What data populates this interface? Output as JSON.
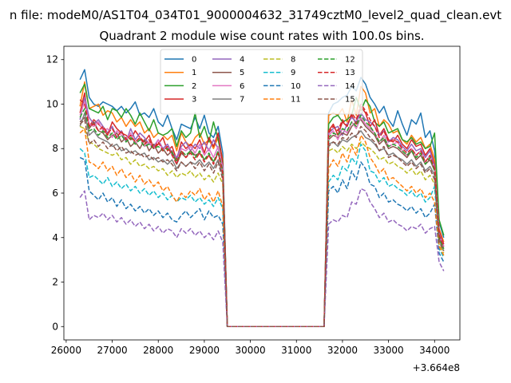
{
  "chart_data": {
    "type": "line",
    "suptitle": "n file: modeM0/AS1T04_034T01_9000004632_31749cztM0_level2_quad_clean.evt",
    "title": "Quadrant 2 module wise count rates with 100.0s bins.",
    "xlabel": "",
    "ylabel": "",
    "x_offset_label": "+3.664e8",
    "xlim": [
      25950,
      34550
    ],
    "ylim": [
      -0.6,
      12.6
    ],
    "x_ticks": [
      26000,
      27000,
      28000,
      29000,
      30000,
      31000,
      32000,
      33000,
      34000
    ],
    "y_ticks": [
      0,
      2,
      4,
      6,
      8,
      10,
      12
    ],
    "grid": false,
    "legend": {
      "placement": "top-center",
      "columns": 4
    },
    "x": [
      26300,
      26400,
      26500,
      26600,
      26700,
      26800,
      26900,
      27000,
      27100,
      27200,
      27300,
      27400,
      27500,
      27600,
      27700,
      27800,
      27900,
      28000,
      28100,
      28200,
      28300,
      28400,
      28500,
      28600,
      28700,
      28800,
      28900,
      29000,
      29100,
      29200,
      29300,
      29400,
      29500,
      29600,
      29700,
      31600,
      31700,
      31800,
      31900,
      32000,
      32100,
      32200,
      32300,
      32400,
      32500,
      32600,
      32700,
      32800,
      32900,
      33000,
      33100,
      33200,
      33300,
      33400,
      33500,
      33600,
      33700,
      33800,
      33900,
      34000,
      34100,
      34200
    ],
    "series": [
      {
        "name": "0",
        "color": "#1f77b4",
        "dash": "solid",
        "values": [
          11.1,
          11.55,
          10.3,
          10.0,
          9.9,
          10.1,
          10.0,
          9.9,
          9.7,
          9.9,
          9.6,
          9.8,
          10.1,
          9.5,
          9.6,
          9.4,
          9.8,
          9.2,
          9.0,
          9.5,
          8.9,
          8.4,
          9.1,
          9.0,
          8.9,
          9.4,
          8.9,
          9.5,
          8.7,
          8.5,
          9.0,
          7.8,
          0.0,
          0.0,
          0.0,
          0.0,
          9.6,
          10.0,
          10.1,
          10.3,
          10.4,
          10.8,
          10.6,
          11.2,
          10.9,
          10.3,
          10.0,
          9.6,
          9.9,
          9.3,
          9.0,
          9.7,
          9.1,
          8.6,
          9.3,
          9.1,
          9.6,
          8.5,
          8.8,
          7.9,
          4.7,
          4.0
        ]
      },
      {
        "name": "1",
        "color": "#ff7f0e",
        "dash": "solid",
        "values": [
          9.9,
          11.0,
          9.8,
          9.9,
          10.0,
          9.5,
          9.7,
          9.6,
          9.2,
          9.4,
          9.0,
          9.3,
          9.0,
          9.2,
          8.7,
          8.9,
          8.5,
          8.7,
          8.6,
          8.4,
          8.6,
          7.9,
          8.7,
          8.3,
          8.1,
          8.5,
          8.7,
          8.2,
          8.4,
          8.0,
          8.5,
          7.5,
          0.0,
          0.0,
          0.0,
          0.0,
          9.5,
          9.6,
          9.5,
          9.8,
          9.2,
          10.2,
          9.5,
          10.8,
          10.5,
          9.6,
          9.8,
          9.0,
          9.3,
          9.1,
          8.7,
          8.8,
          8.4,
          8.2,
          8.6,
          8.3,
          8.5,
          8.0,
          8.2,
          7.5,
          4.4,
          3.8
        ]
      },
      {
        "name": "2",
        "color": "#2ca02c",
        "dash": "solid",
        "values": [
          10.5,
          10.9,
          9.8,
          9.7,
          9.6,
          9.9,
          9.3,
          9.8,
          9.7,
          9.4,
          9.8,
          9.5,
          9.1,
          9.6,
          9.2,
          8.8,
          9.3,
          8.7,
          8.6,
          8.7,
          8.9,
          8.1,
          8.8,
          8.5,
          8.7,
          9.6,
          8.5,
          9.0,
          8.3,
          9.2,
          8.4,
          7.4,
          0.0,
          0.0,
          0.0,
          0.0,
          9.1,
          9.4,
          9.5,
          9.2,
          9.3,
          9.5,
          10.3,
          9.7,
          10.2,
          9.9,
          9.2,
          9.0,
          9.2,
          8.7,
          8.8,
          8.9,
          8.4,
          8.3,
          8.5,
          8.2,
          8.3,
          8.0,
          8.1,
          8.7,
          4.8,
          4.1
        ]
      },
      {
        "name": "3",
        "color": "#d62728",
        "dash": "solid",
        "values": [
          9.6,
          10.5,
          9.0,
          9.3,
          9.1,
          8.9,
          8.6,
          9.2,
          8.9,
          8.7,
          8.6,
          8.4,
          8.8,
          8.5,
          8.3,
          8.6,
          8.0,
          8.2,
          8.5,
          7.9,
          8.1,
          7.5,
          8.3,
          8.0,
          8.2,
          8.0,
          8.4,
          7.8,
          8.5,
          8.1,
          8.7,
          7.3,
          0.0,
          0.0,
          0.0,
          0.0,
          8.8,
          9.1,
          8.6,
          9.2,
          9.0,
          9.5,
          9.1,
          9.9,
          9.6,
          9.0,
          9.3,
          8.6,
          8.9,
          8.4,
          8.3,
          8.6,
          8.2,
          8.0,
          8.4,
          8.1,
          8.2,
          7.7,
          8.0,
          7.3,
          4.3,
          3.7
        ]
      },
      {
        "name": "4",
        "color": "#9467bd",
        "dash": "solid",
        "values": [
          9.3,
          10.3,
          9.4,
          9.1,
          9.3,
          9.0,
          8.7,
          9.0,
          8.5,
          8.8,
          8.3,
          8.9,
          8.4,
          8.7,
          8.5,
          8.2,
          8.1,
          8.4,
          8.0,
          8.2,
          7.8,
          7.6,
          8.1,
          8.3,
          7.9,
          8.2,
          8.0,
          8.3,
          7.9,
          8.4,
          8.0,
          7.2,
          0.0,
          0.0,
          0.0,
          0.0,
          8.7,
          8.9,
          9.0,
          8.6,
          9.1,
          9.4,
          9.2,
          9.6,
          9.3,
          9.2,
          9.0,
          8.6,
          8.8,
          8.3,
          8.5,
          8.4,
          8.1,
          7.9,
          8.2,
          7.9,
          8.0,
          7.6,
          7.9,
          7.2,
          4.2,
          3.6
        ]
      },
      {
        "name": "5",
        "color": "#8c564b",
        "dash": "solid",
        "values": [
          9.2,
          9.4,
          8.9,
          9.2,
          8.8,
          8.7,
          8.4,
          8.6,
          8.7,
          8.3,
          8.5,
          8.1,
          8.3,
          8.0,
          8.4,
          7.9,
          8.2,
          7.8,
          8.0,
          7.7,
          7.9,
          7.3,
          7.8,
          7.6,
          7.9,
          7.7,
          7.8,
          7.5,
          7.7,
          7.4,
          7.8,
          7.0,
          0.0,
          0.0,
          0.0,
          0.0,
          8.4,
          8.6,
          8.5,
          8.7,
          8.6,
          9.0,
          9.2,
          9.3,
          9.0,
          8.8,
          8.6,
          8.2,
          8.4,
          8.0,
          8.1,
          8.0,
          7.8,
          7.6,
          7.9,
          7.5,
          7.7,
          7.3,
          7.5,
          7.0,
          4.0,
          3.5
        ]
      },
      {
        "name": "6",
        "color": "#e377c2",
        "dash": "solid",
        "values": [
          9.5,
          10.1,
          9.1,
          9.0,
          9.2,
          8.8,
          8.9,
          8.5,
          8.8,
          8.6,
          8.4,
          8.7,
          8.2,
          8.5,
          8.1,
          8.3,
          8.0,
          8.4,
          7.9,
          8.1,
          7.7,
          7.4,
          8.0,
          7.9,
          8.1,
          7.8,
          8.2,
          7.7,
          8.0,
          7.6,
          8.1,
          7.1,
          0.0,
          0.0,
          0.0,
          0.0,
          8.6,
          8.8,
          8.4,
          8.9,
          8.7,
          9.2,
          8.9,
          9.4,
          9.1,
          8.9,
          8.7,
          8.3,
          8.6,
          8.1,
          8.2,
          8.3,
          7.9,
          7.7,
          8.0,
          7.7,
          7.9,
          7.4,
          7.7,
          7.1,
          4.1,
          3.6
        ]
      },
      {
        "name": "7",
        "color": "#7f7f7f",
        "dash": "solid",
        "values": [
          9.0,
          9.6,
          8.6,
          8.8,
          8.5,
          8.4,
          8.3,
          8.1,
          8.2,
          7.9,
          8.0,
          7.8,
          7.9,
          7.7,
          7.8,
          7.5,
          7.6,
          7.4,
          7.5,
          7.3,
          7.5,
          7.1,
          7.4,
          7.2,
          7.4,
          7.3,
          7.5,
          7.2,
          7.4,
          7.1,
          7.5,
          6.8,
          0.0,
          0.0,
          0.0,
          0.0,
          8.2,
          8.3,
          8.1,
          8.4,
          8.3,
          8.5,
          8.6,
          8.8,
          8.5,
          8.4,
          8.2,
          7.9,
          8.0,
          7.7,
          7.8,
          7.6,
          7.5,
          7.3,
          7.5,
          7.2,
          7.4,
          7.0,
          7.2,
          6.8,
          3.9,
          3.4
        ]
      },
      {
        "name": "8",
        "color": "#bcbd22",
        "dash": "dashed",
        "values": [
          9.0,
          8.9,
          8.3,
          8.2,
          8.0,
          7.9,
          7.8,
          7.7,
          7.8,
          7.5,
          7.6,
          7.3,
          7.5,
          7.2,
          7.3,
          7.1,
          7.2,
          7.0,
          7.1,
          6.8,
          7.0,
          6.7,
          6.9,
          6.8,
          7.0,
          6.7,
          6.9,
          6.6,
          6.8,
          6.5,
          6.9,
          6.4,
          0.0,
          0.0,
          0.0,
          0.0,
          7.9,
          8.0,
          7.8,
          8.1,
          7.9,
          8.2,
          8.0,
          8.3,
          8.1,
          8.0,
          7.8,
          7.5,
          7.6,
          7.3,
          7.4,
          7.2,
          7.1,
          6.9,
          7.1,
          6.8,
          7.0,
          6.6,
          6.8,
          6.4,
          3.7,
          3.3
        ]
      },
      {
        "name": "9",
        "color": "#17becf",
        "dash": "dashed",
        "values": [
          8.0,
          7.8,
          6.7,
          6.8,
          6.6,
          6.4,
          6.7,
          6.3,
          6.5,
          6.2,
          6.4,
          6.1,
          6.3,
          6.0,
          6.2,
          5.9,
          6.1,
          5.8,
          6.0,
          5.7,
          5.9,
          5.6,
          5.8,
          5.7,
          5.9,
          5.6,
          5.8,
          5.5,
          5.7,
          5.4,
          5.8,
          5.3,
          0.0,
          0.0,
          0.0,
          0.0,
          6.5,
          6.8,
          6.6,
          7.2,
          7.0,
          7.6,
          7.3,
          8.2,
          7.9,
          7.0,
          6.9,
          6.5,
          6.7,
          6.3,
          6.4,
          6.2,
          6.1,
          5.9,
          6.1,
          5.8,
          6.0,
          5.6,
          5.8,
          6.3,
          3.5,
          3.1
        ]
      },
      {
        "name": "10",
        "color": "#1f77b4",
        "dash": "dashed",
        "values": [
          7.6,
          7.5,
          6.1,
          5.9,
          5.7,
          6.0,
          5.6,
          5.8,
          5.4,
          5.7,
          5.3,
          5.5,
          5.2,
          5.4,
          5.1,
          5.3,
          5.0,
          5.2,
          4.9,
          5.1,
          4.8,
          4.7,
          5.0,
          5.2,
          4.9,
          5.1,
          5.3,
          4.8,
          5.2,
          4.9,
          5.0,
          4.6,
          0.0,
          0.0,
          0.0,
          0.0,
          6.1,
          6.3,
          6.0,
          6.6,
          6.2,
          7.0,
          6.6,
          7.4,
          7.1,
          6.4,
          6.3,
          5.8,
          6.0,
          5.6,
          5.7,
          5.5,
          5.4,
          5.2,
          5.4,
          5.1,
          5.3,
          4.9,
          5.1,
          5.5,
          3.3,
          2.9
        ]
      },
      {
        "name": "11",
        "color": "#ff7f0e",
        "dash": "dashed",
        "values": [
          8.7,
          8.9,
          7.4,
          7.3,
          7.1,
          7.4,
          7.0,
          7.2,
          6.8,
          7.1,
          6.7,
          6.9,
          6.5,
          6.8,
          6.4,
          6.6,
          6.3,
          6.5,
          6.1,
          6.3,
          5.9,
          5.6,
          6.0,
          5.8,
          6.1,
          5.9,
          6.2,
          5.7,
          6.0,
          5.6,
          6.1,
          5.4,
          0.0,
          0.0,
          0.0,
          0.0,
          7.1,
          7.5,
          7.2,
          7.8,
          7.4,
          8.1,
          7.7,
          8.6,
          8.3,
          7.6,
          7.3,
          6.9,
          7.1,
          6.6,
          6.7,
          6.5,
          6.3,
          6.1,
          6.3,
          6.0,
          6.2,
          5.8,
          6.0,
          5.6,
          3.6,
          3.2
        ]
      },
      {
        "name": "12",
        "color": "#2ca02c",
        "dash": "dashed",
        "values": [
          9.4,
          9.8,
          8.8,
          8.9,
          8.6,
          8.8,
          8.5,
          8.7,
          8.4,
          8.6,
          8.3,
          8.5,
          8.2,
          8.4,
          8.1,
          8.2,
          8.0,
          8.1,
          7.9,
          8.0,
          7.8,
          7.4,
          7.9,
          7.7,
          7.9,
          7.6,
          7.9,
          7.5,
          7.8,
          7.4,
          7.9,
          7.0,
          0.0,
          0.0,
          0.0,
          0.0,
          8.5,
          8.7,
          8.6,
          8.9,
          8.8,
          9.2,
          9.0,
          9.5,
          9.2,
          9.0,
          8.7,
          8.3,
          8.5,
          8.1,
          8.2,
          8.1,
          7.9,
          7.7,
          7.9,
          7.6,
          7.8,
          7.3,
          7.6,
          7.0,
          4.0,
          3.5
        ]
      },
      {
        "name": "13",
        "color": "#d62728",
        "dash": "dashed",
        "values": [
          10.2,
          10.0,
          9.0,
          9.1,
          8.8,
          9.0,
          8.7,
          8.9,
          8.5,
          8.8,
          8.4,
          8.6,
          8.3,
          8.5,
          8.2,
          8.4,
          8.0,
          8.3,
          7.9,
          8.1,
          7.7,
          7.3,
          7.9,
          7.6,
          7.8,
          7.5,
          7.8,
          7.4,
          7.7,
          7.3,
          7.8,
          6.9,
          0.0,
          0.0,
          0.0,
          0.0,
          8.7,
          9.0,
          8.8,
          9.3,
          9.0,
          9.6,
          9.3,
          10.0,
          9.7,
          9.3,
          9.0,
          8.5,
          8.8,
          8.3,
          8.4,
          8.3,
          8.0,
          7.8,
          8.0,
          7.7,
          7.9,
          7.4,
          7.7,
          7.1,
          4.1,
          3.6
        ]
      },
      {
        "name": "14",
        "color": "#9467bd",
        "dash": "dashed",
        "values": [
          5.8,
          6.1,
          4.8,
          5.0,
          4.9,
          5.1,
          4.8,
          5.0,
          4.7,
          4.9,
          4.6,
          4.8,
          4.5,
          4.7,
          4.4,
          4.6,
          4.3,
          4.5,
          4.2,
          4.4,
          4.3,
          4.0,
          4.4,
          4.2,
          4.4,
          4.1,
          4.3,
          4.0,
          4.2,
          3.9,
          4.3,
          3.8,
          0.0,
          0.0,
          0.0,
          0.0,
          4.6,
          4.8,
          4.7,
          5.0,
          4.9,
          5.6,
          5.5,
          6.2,
          6.1,
          5.6,
          5.3,
          4.9,
          5.1,
          4.7,
          4.8,
          4.6,
          4.5,
          4.3,
          4.5,
          4.4,
          4.6,
          4.2,
          4.4,
          4.5,
          2.9,
          2.5
        ]
      },
      {
        "name": "15",
        "color": "#8c564b",
        "dash": "dashed",
        "values": [
          9.1,
          9.3,
          8.2,
          8.4,
          8.1,
          8.3,
          8.0,
          8.2,
          7.9,
          8.1,
          7.8,
          7.9,
          7.7,
          7.8,
          7.6,
          7.7,
          7.5,
          7.6,
          7.4,
          7.5,
          7.3,
          7.0,
          7.4,
          7.2,
          7.4,
          7.1,
          7.4,
          7.0,
          7.3,
          6.9,
          7.4,
          6.6,
          0.0,
          0.0,
          0.0,
          0.0,
          8.1,
          8.3,
          8.2,
          8.5,
          8.4,
          8.7,
          8.5,
          9.0,
          8.8,
          8.5,
          8.3,
          7.9,
          8.1,
          7.6,
          7.7,
          7.6,
          7.4,
          7.2,
          7.4,
          7.1,
          7.3,
          6.9,
          7.1,
          6.6,
          3.8,
          3.4
        ]
      }
    ]
  }
}
